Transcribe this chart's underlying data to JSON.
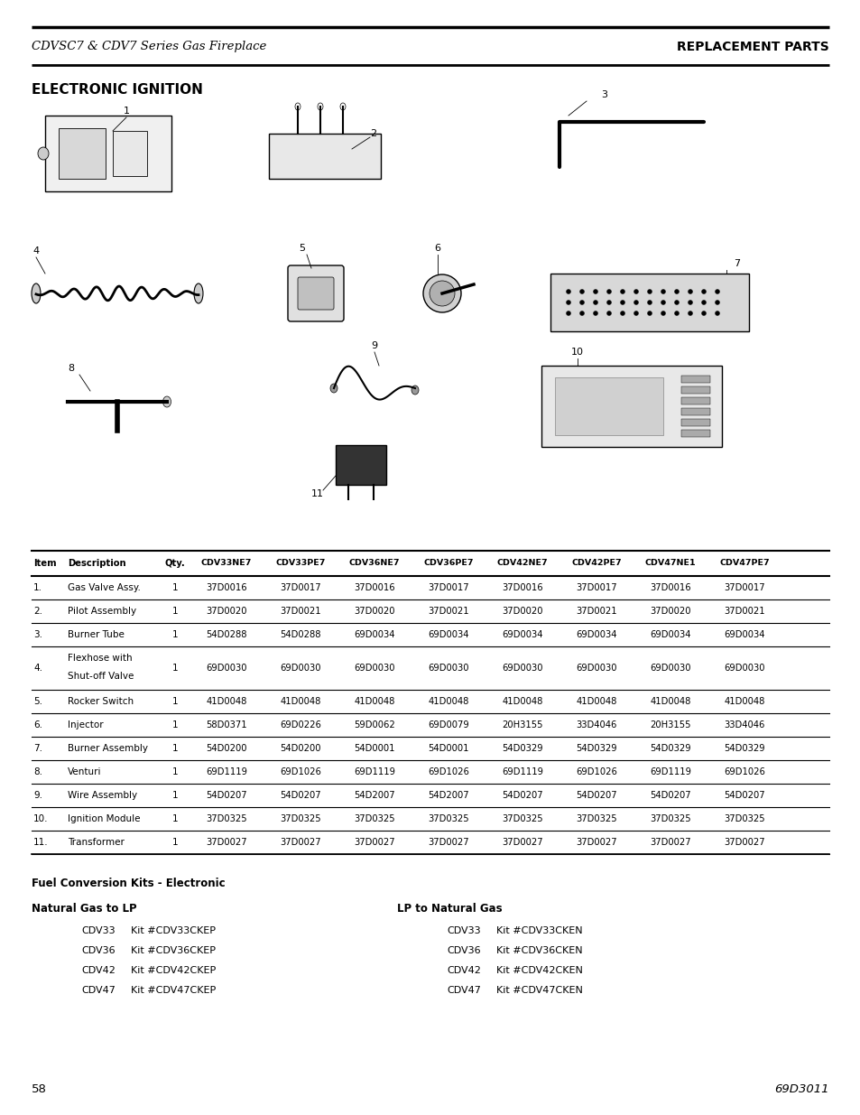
{
  "header_left": "CDVSC7 & CDV7 Series Gas Fireplace",
  "header_right": "REPLACEMENT PARTS",
  "section_title": "ELECTRONIC IGNITION",
  "table_headers": [
    "Item",
    "Description",
    "Qty.",
    "CDV33NE7",
    "CDV33PE7",
    "CDV36NE7",
    "CDV36PE7",
    "CDV42NE7",
    "CDV42PE7",
    "CDV47NE1",
    "CDV47PE7"
  ],
  "table_rows": [
    [
      "1.",
      "Gas Valve Assy.",
      "1",
      "37D0016",
      "37D0017",
      "37D0016",
      "37D0017",
      "37D0016",
      "37D0017",
      "37D0016",
      "37D0017"
    ],
    [
      "2.",
      "Pilot Assembly",
      "1",
      "37D0020",
      "37D0021",
      "37D0020",
      "37D0021",
      "37D0020",
      "37D0021",
      "37D0020",
      "37D0021"
    ],
    [
      "3.",
      "Burner Tube",
      "1",
      "54D0288",
      "54D0288",
      "69D0034",
      "69D0034",
      "69D0034",
      "69D0034",
      "69D0034",
      "69D0034"
    ],
    [
      "4.",
      "Flexhose with\nShut-off Valve",
      "1",
      "69D0030",
      "69D0030",
      "69D0030",
      "69D0030",
      "69D0030",
      "69D0030",
      "69D0030",
      "69D0030"
    ],
    [
      "5.",
      "Rocker Switch",
      "1",
      "41D0048",
      "41D0048",
      "41D0048",
      "41D0048",
      "41D0048",
      "41D0048",
      "41D0048",
      "41D0048"
    ],
    [
      "6.",
      "Injector",
      "1",
      "58D0371",
      "69D0226",
      "59D0062",
      "69D0079",
      "20H3155",
      "33D4046",
      "20H3155",
      "33D4046"
    ],
    [
      "7.",
      "Burner Assembly",
      "1",
      "54D0200",
      "54D0200",
      "54D0001",
      "54D0001",
      "54D0329",
      "54D0329",
      "54D0329",
      "54D0329"
    ],
    [
      "8.",
      "Venturi",
      "1",
      "69D1119",
      "69D1026",
      "69D1119",
      "69D1026",
      "69D1119",
      "69D1026",
      "69D1119",
      "69D1026"
    ],
    [
      "9.",
      "Wire Assembly",
      "1",
      "54D0207",
      "54D0207",
      "54D2007",
      "54D2007",
      "54D0207",
      "54D0207",
      "54D0207",
      "54D0207"
    ],
    [
      "10.",
      "Ignition Module",
      "1",
      "37D0325",
      "37D0325",
      "37D0325",
      "37D0325",
      "37D0325",
      "37D0325",
      "37D0325",
      "37D0325"
    ],
    [
      "11.",
      "Transformer",
      "1",
      "37D0027",
      "37D0027",
      "37D0027",
      "37D0027",
      "37D0027",
      "37D0027",
      "37D0027",
      "37D0027"
    ]
  ],
  "fuel_title": "Fuel Conversion Kits - Electronic",
  "ng_to_lp_title": "Natural Gas to LP",
  "lp_to_ng_title": "LP to Natural Gas",
  "ng_to_lp": [
    [
      "CDV33",
      "Kit #CDV33CKEP"
    ],
    [
      "CDV36",
      "Kit #CDV36CKEP"
    ],
    [
      "CDV42",
      "Kit #CDV42CKEP"
    ],
    [
      "CDV47",
      "Kit #CDV47CKEP"
    ]
  ],
  "lp_to_ng": [
    [
      "CDV33",
      "Kit #CDV33CKEN"
    ],
    [
      "CDV36",
      "Kit #CDV36CKEN"
    ],
    [
      "CDV42",
      "Kit #CDV42CKEN"
    ],
    [
      "CDV47",
      "Kit #CDV47CKEN"
    ]
  ],
  "page_num": "58",
  "doc_num": "69D3011",
  "bg_color": "#ffffff",
  "text_color": "#000000",
  "header_line_color": "#000000"
}
